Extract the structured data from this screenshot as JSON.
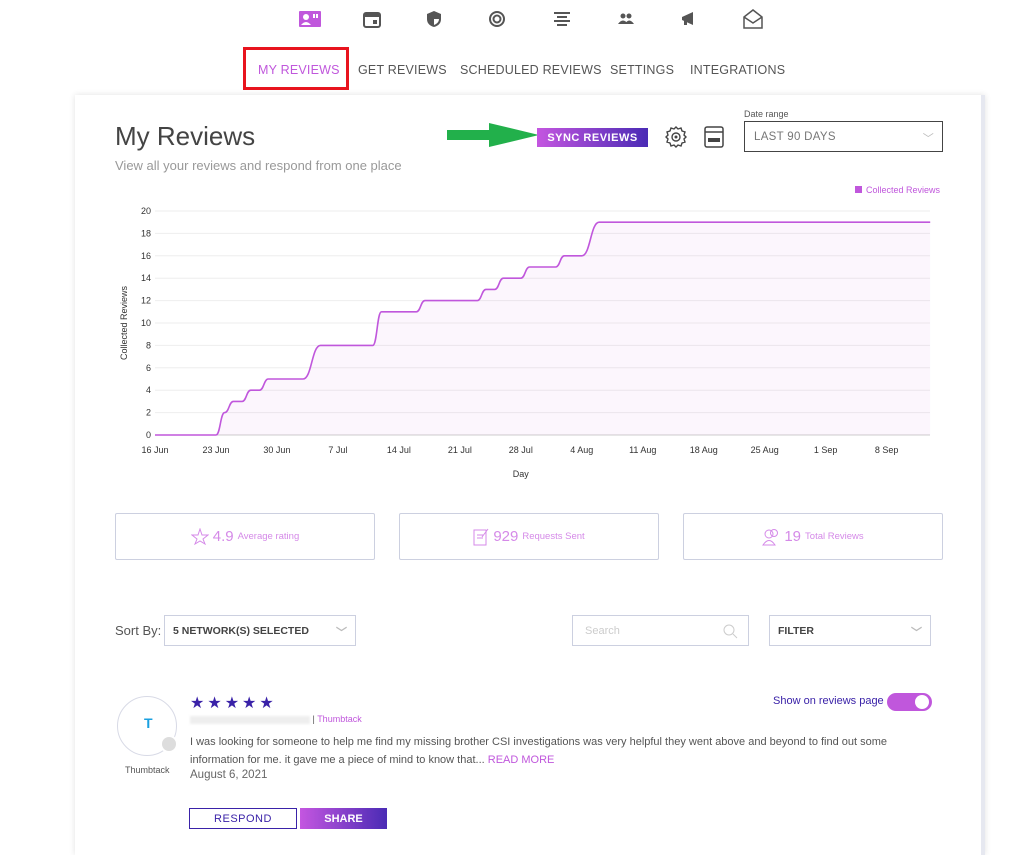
{
  "top_icons": [
    "reviews-icon",
    "calendar-icon",
    "shield-icon",
    "radar-icon",
    "align-center-icon",
    "people-icon",
    "megaphone-icon",
    "envelope-icon"
  ],
  "nav": {
    "tabs": [
      "MY REVIEWS",
      "GET REVIEWS",
      "SCHEDULED REVIEWS",
      "SETTINGS",
      "INTEGRATIONS"
    ],
    "active": 0
  },
  "header": {
    "title": "My Reviews",
    "subtitle": "View all your reviews and respond from one place",
    "sync_label": "SYNC REVIEWS",
    "date_range_label": "Date range",
    "date_range_value": "LAST 90 DAYS"
  },
  "colors": {
    "accent": "#c057dc",
    "dark_accent": "#3a22a8",
    "highlight": "#e8141e",
    "arrow": "#22b04b"
  },
  "chart_data": {
    "type": "line",
    "title": "",
    "xlabel": "Day",
    "ylabel": "Collected Reviews",
    "legend": [
      "Collected Reviews"
    ],
    "legend_position": "top-right",
    "ylim": [
      0,
      20
    ],
    "yticks": [
      0,
      2,
      4,
      6,
      8,
      10,
      12,
      14,
      16,
      18,
      20
    ],
    "xticks": [
      "16 Jun",
      "23 Jun",
      "30 Jun",
      "7 Jul",
      "14 Jul",
      "21 Jul",
      "28 Jul",
      "4 Aug",
      "11 Aug",
      "18 Aug",
      "25 Aug",
      "1 Sep",
      "8 Sep"
    ],
    "x_day_offset_start": "16 Jun",
    "x_range_days": [
      0,
      89
    ],
    "series": [
      {
        "name": "Collected Reviews",
        "points": [
          [
            0,
            0
          ],
          [
            7,
            0
          ],
          [
            8,
            2
          ],
          [
            9,
            3
          ],
          [
            10,
            3
          ],
          [
            11,
            4
          ],
          [
            12,
            4
          ],
          [
            13,
            5
          ],
          [
            17,
            5
          ],
          [
            19,
            8
          ],
          [
            25,
            8
          ],
          [
            26,
            11
          ],
          [
            30,
            11
          ],
          [
            31,
            12
          ],
          [
            37,
            12
          ],
          [
            38,
            13
          ],
          [
            39,
            13
          ],
          [
            40,
            14
          ],
          [
            42,
            14
          ],
          [
            43,
            15
          ],
          [
            46,
            15
          ],
          [
            47,
            16
          ],
          [
            49,
            16
          ],
          [
            51,
            19
          ],
          [
            89,
            19
          ]
        ]
      }
    ]
  },
  "stats": [
    {
      "icon": "star-icon",
      "value": "4.9",
      "label": "Average rating"
    },
    {
      "icon": "document-icon",
      "value": "929",
      "label": "Requests Sent"
    },
    {
      "icon": "users-icon",
      "value": "19",
      "label": "Total Reviews"
    }
  ],
  "filters": {
    "sort_label": "Sort By:",
    "networks": "5 NETWORK(S) SELECTED",
    "search_placeholder": "Search",
    "filter": "FILTER"
  },
  "review": {
    "avatar_letter": "T",
    "source": "Thumbtack",
    "network": "Thumbtack",
    "stars": "★★★★★",
    "text": "I was looking for someone to help me find my missing brother CSI investigations was very helpful they went above and beyond to find out some information for me. it gave me a piece of mind to know that...",
    "read_more": "READ MORE",
    "date": "August 6, 2021",
    "show_label": "Show on reviews page",
    "respond": "RESPOND",
    "share": "SHARE"
  }
}
